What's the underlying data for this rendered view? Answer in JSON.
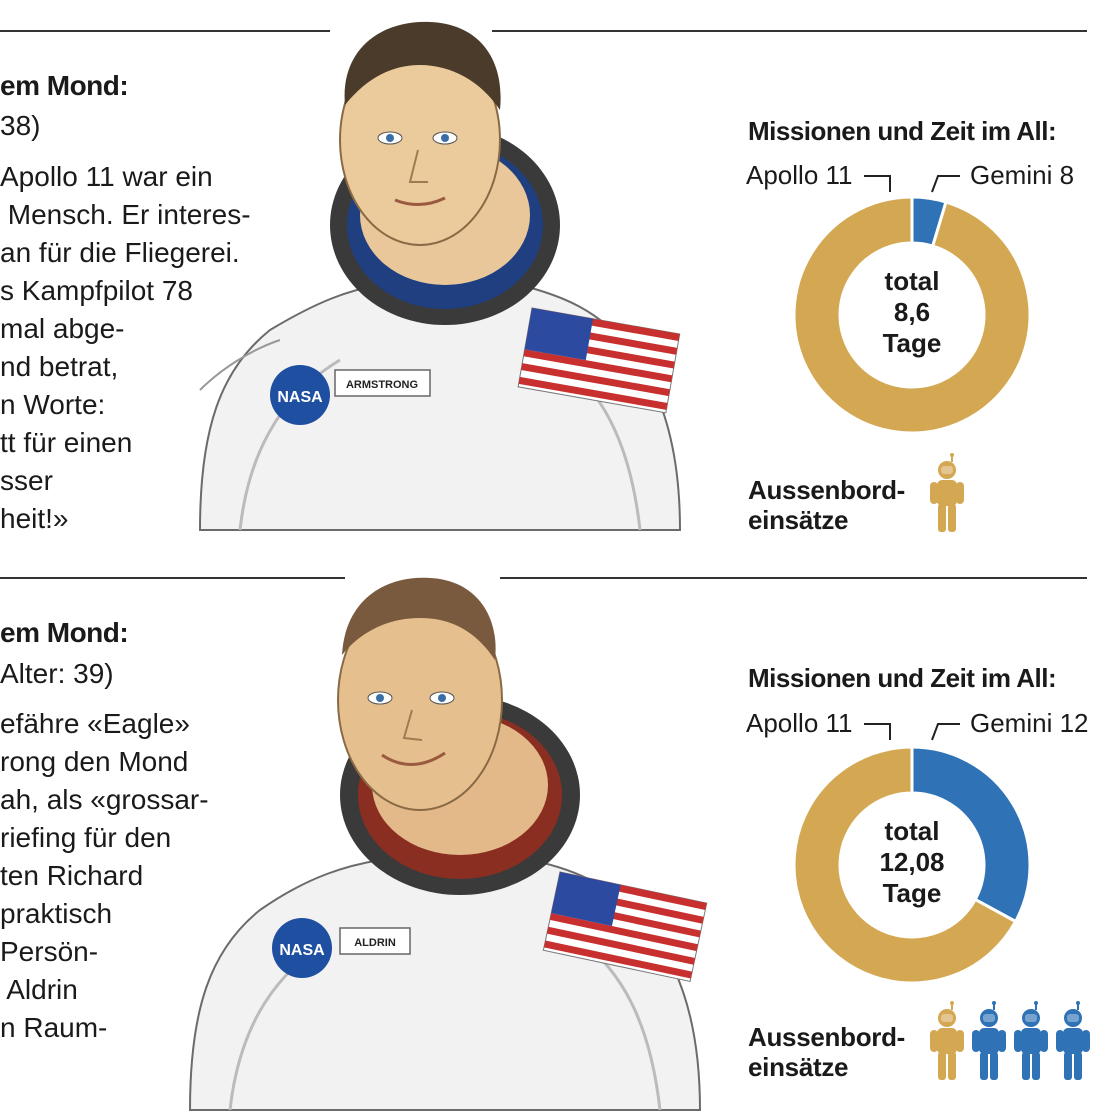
{
  "colors": {
    "gold": "#D4A853",
    "blue": "#2F72B6",
    "rule": "#333333"
  },
  "astronauts": [
    {
      "id": "armstrong",
      "heading": "em Mond:",
      "subheading": " 38)",
      "body": [
        "Apollo 11 war ein",
        " Mensch. Er interes-",
        "an für die Fliegerei.",
        "s Kampfpilot 78",
        "mal abge-",
        "nd betrat,",
        "n Worte:",
        "tt für einen",
        "sser",
        "heit!»"
      ],
      "nametag": "ARMSTRONG",
      "nasa": "NASA",
      "chart_title": "Missionen und Zeit im All:",
      "center_text": [
        "total",
        "8,6",
        "Tage"
      ],
      "eva_label": "Aussenbord-\neinsätze",
      "eva_icons": [
        "gold"
      ]
    },
    {
      "id": "aldrin",
      "heading": "em Mond:",
      "subheading": "Alter: 39)",
      "body": [
        "efähre «Eagle»",
        "rong den Mond",
        "ah, als «grossar-",
        "riefing für den",
        "ten Richard",
        "praktisch",
        "Persön-",
        " Aldrin",
        "n Raum-"
      ],
      "nametag": "ALDRIN",
      "nasa": "NASA",
      "chart_title": "Missionen und Zeit im All:",
      "center_text": [
        "total",
        "12,08",
        "Tage"
      ],
      "eva_label": "Aussenbord-\neinsätze",
      "eva_icons": [
        "gold",
        "blue",
        "blue",
        "blue"
      ]
    }
  ],
  "chart_data": [
    {
      "type": "pie",
      "title": "Missionen und Zeit im All:",
      "categories": [
        "Apollo 11",
        "Gemini 8"
      ],
      "values": [
        8.2,
        0.4
      ],
      "colors": [
        "#D4A853",
        "#2F72B6"
      ],
      "unit": "Tage",
      "total": 8.6,
      "center_label": "total 8,6 Tage",
      "extra": {
        "label": "Aussenbord-einsätze",
        "count": 1
      }
    },
    {
      "type": "pie",
      "title": "Missionen und Zeit im All:",
      "categories": [
        "Apollo 11",
        "Gemini 12"
      ],
      "values": [
        8.1,
        3.98
      ],
      "colors": [
        "#D4A853",
        "#2F72B6"
      ],
      "unit": "Tage",
      "total": 12.08,
      "center_label": "total 12,08 Tage",
      "extra": {
        "label": "Aussenbord-einsätze",
        "count": 4
      }
    }
  ]
}
